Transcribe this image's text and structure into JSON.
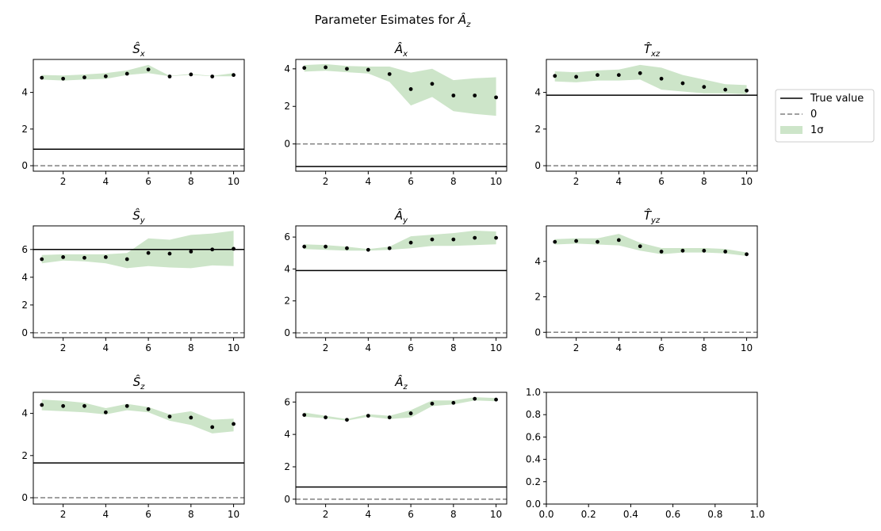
{
  "figure": {
    "title_prefix": "Parameter Esimates for ",
    "title_symbol": "Â",
    "title_sub": "z"
  },
  "legend": {
    "location": "right of top-right subplot",
    "entries": [
      {
        "label": "True value",
        "style": "solid-line",
        "color": "#000000"
      },
      {
        "label": "0",
        "style": "dashed-line",
        "color": "#808080"
      },
      {
        "label": "1σ",
        "style": "patch",
        "color": "#cde5c9"
      }
    ]
  },
  "colors": {
    "band": "#cde5c9",
    "true_line": "#000000",
    "zero_line": "#808080",
    "points": "#000000"
  },
  "chart_data": [
    {
      "type": "line",
      "symbol": "Ŝ",
      "sub": "x",
      "x": [
        1,
        2,
        3,
        4,
        5,
        6,
        7,
        8,
        9,
        10
      ],
      "y": [
        4.8,
        4.75,
        4.82,
        4.88,
        5.02,
        5.25,
        4.87,
        4.98,
        4.87,
        4.95
      ],
      "band_low": [
        4.7,
        4.65,
        4.7,
        4.74,
        4.95,
        5.05,
        4.88,
        4.96,
        4.88,
        4.88
      ],
      "band_high": [
        4.95,
        4.92,
        4.98,
        5.05,
        5.2,
        5.5,
        4.9,
        5.01,
        4.9,
        5.05
      ],
      "true_value": 0.9,
      "xlim": [
        0.6,
        10.5
      ],
      "ylim": [
        -0.3,
        5.8
      ],
      "xticks": [
        2,
        4,
        6,
        8,
        10
      ],
      "yticks": [
        0,
        2,
        4
      ]
    },
    {
      "type": "line",
      "symbol": "Â",
      "sub": "x",
      "x": [
        1,
        2,
        3,
        4,
        5,
        6,
        7,
        8,
        9,
        10
      ],
      "y": [
        4.05,
        4.08,
        4.0,
        3.95,
        3.72,
        2.92,
        3.2,
        2.58,
        2.58,
        2.48
      ],
      "band_low": [
        3.85,
        3.9,
        3.82,
        3.75,
        3.3,
        2.05,
        2.5,
        1.75,
        1.6,
        1.5
      ],
      "band_high": [
        4.2,
        4.25,
        4.15,
        4.12,
        4.12,
        3.8,
        4.0,
        3.4,
        3.5,
        3.55
      ],
      "true_value": -1.2,
      "xlim": [
        0.6,
        10.5
      ],
      "ylim": [
        -1.45,
        4.5
      ],
      "xticks": [
        2,
        4,
        6,
        8,
        10
      ],
      "yticks": [
        0,
        2,
        4
      ]
    },
    {
      "type": "line",
      "symbol": "T̂",
      "sub": "xz",
      "x": [
        1,
        2,
        3,
        4,
        5,
        6,
        7,
        8,
        9,
        10
      ],
      "y": [
        4.9,
        4.85,
        4.95,
        4.95,
        5.05,
        4.75,
        4.5,
        4.3,
        4.15,
        4.1
      ],
      "band_low": [
        4.6,
        4.55,
        4.65,
        4.65,
        4.7,
        4.15,
        4.05,
        3.95,
        3.95,
        3.9
      ],
      "band_high": [
        5.15,
        5.1,
        5.2,
        5.25,
        5.5,
        5.35,
        4.95,
        4.7,
        4.45,
        4.4
      ],
      "true_value": 3.85,
      "xlim": [
        0.6,
        10.5
      ],
      "ylim": [
        -0.3,
        5.8
      ],
      "xticks": [
        2,
        4,
        6,
        8,
        10
      ],
      "yticks": [
        0,
        2,
        4
      ]
    },
    {
      "type": "line",
      "symbol": "Ŝ",
      "sub": "y",
      "x": [
        1,
        2,
        3,
        4,
        5,
        6,
        7,
        8,
        9,
        10
      ],
      "y": [
        5.3,
        5.45,
        5.4,
        5.45,
        5.3,
        5.75,
        5.7,
        5.85,
        6.0,
        6.05
      ],
      "band_low": [
        5.0,
        5.2,
        5.15,
        5.0,
        4.65,
        4.8,
        4.7,
        4.65,
        4.85,
        4.8
      ],
      "band_high": [
        5.6,
        5.65,
        5.65,
        5.65,
        5.75,
        6.8,
        6.7,
        7.05,
        7.15,
        7.35
      ],
      "true_value": 6.0,
      "xlim": [
        0.6,
        10.5
      ],
      "ylim": [
        -0.35,
        7.7
      ],
      "xticks": [
        2,
        4,
        6,
        8,
        10
      ],
      "yticks": [
        0,
        2,
        4,
        6
      ]
    },
    {
      "type": "line",
      "symbol": "Â",
      "sub": "y",
      "x": [
        1,
        2,
        3,
        4,
        5,
        6,
        7,
        8,
        9,
        10
      ],
      "y": [
        5.4,
        5.4,
        5.3,
        5.2,
        5.3,
        5.65,
        5.85,
        5.85,
        5.95,
        5.95
      ],
      "band_low": [
        5.25,
        5.2,
        5.15,
        5.15,
        5.2,
        5.3,
        5.45,
        5.45,
        5.5,
        5.55
      ],
      "band_high": [
        5.55,
        5.5,
        5.4,
        5.25,
        5.4,
        6.05,
        6.15,
        6.25,
        6.4,
        6.35
      ],
      "true_value": 3.9,
      "xlim": [
        0.6,
        10.5
      ],
      "ylim": [
        -0.3,
        6.7
      ],
      "xticks": [
        2,
        4,
        6,
        8,
        10
      ],
      "yticks": [
        0,
        2,
        4,
        6
      ]
    },
    {
      "type": "line",
      "symbol": "T̂",
      "sub": "yz",
      "x": [
        1,
        2,
        3,
        4,
        5,
        6,
        7,
        8,
        9,
        10
      ],
      "y": [
        5.1,
        5.15,
        5.1,
        5.2,
        4.85,
        4.55,
        4.6,
        4.6,
        4.55,
        4.4
      ],
      "band_low": [
        4.95,
        5.0,
        4.95,
        4.9,
        4.6,
        4.4,
        4.5,
        4.5,
        4.45,
        4.3
      ],
      "band_high": [
        5.25,
        5.3,
        5.3,
        5.55,
        5.05,
        4.75,
        4.75,
        4.75,
        4.7,
        4.5
      ],
      "true_value": null,
      "xlim": [
        0.6,
        10.5
      ],
      "ylim": [
        -0.3,
        6.0
      ],
      "xticks": [
        2,
        4,
        6,
        8,
        10
      ],
      "yticks": [
        0,
        2,
        4
      ]
    },
    {
      "type": "line",
      "symbol": "Ŝ",
      "sub": "z",
      "x": [
        1,
        2,
        3,
        4,
        5,
        6,
        7,
        8,
        9,
        10
      ],
      "y": [
        4.4,
        4.35,
        4.35,
        4.05,
        4.35,
        4.2,
        3.85,
        3.8,
        3.35,
        3.5
      ],
      "band_low": [
        4.15,
        4.1,
        4.05,
        3.95,
        4.15,
        4.05,
        3.65,
        3.45,
        3.05,
        3.15
      ],
      "band_high": [
        4.65,
        4.6,
        4.5,
        4.25,
        4.45,
        4.3,
        3.95,
        4.1,
        3.7,
        3.75
      ],
      "true_value": 1.65,
      "xlim": [
        0.6,
        10.5
      ],
      "ylim": [
        -0.3,
        5.0
      ],
      "xticks": [
        2,
        4,
        6,
        8,
        10
      ],
      "yticks": [
        0,
        2,
        4
      ]
    },
    {
      "type": "line",
      "symbol": "Â",
      "sub": "z",
      "x": [
        1,
        2,
        3,
        4,
        5,
        6,
        7,
        8,
        9,
        10
      ],
      "y": [
        5.2,
        5.05,
        4.9,
        5.15,
        5.05,
        5.3,
        5.9,
        5.95,
        6.2,
        6.15
      ],
      "band_low": [
        5.1,
        5.0,
        4.85,
        5.1,
        4.95,
        5.05,
        5.75,
        5.85,
        6.1,
        6.05
      ],
      "band_high": [
        5.35,
        5.15,
        4.95,
        5.25,
        5.15,
        5.5,
        6.1,
        6.1,
        6.3,
        6.25
      ],
      "true_value": 0.75,
      "xlim": [
        0.6,
        10.5
      ],
      "ylim": [
        -0.3,
        6.6
      ],
      "xticks": [
        2,
        4,
        6,
        8,
        10
      ],
      "yticks": [
        0,
        2,
        4,
        6
      ]
    },
    {
      "type": "line",
      "empty": true,
      "xlim": [
        0,
        1
      ],
      "ylim": [
        0,
        1
      ],
      "xticks": [
        0.0,
        0.2,
        0.4,
        0.6,
        0.8,
        1.0
      ],
      "yticks": [
        0.0,
        0.2,
        0.4,
        0.6,
        0.8,
        1.0
      ]
    }
  ]
}
